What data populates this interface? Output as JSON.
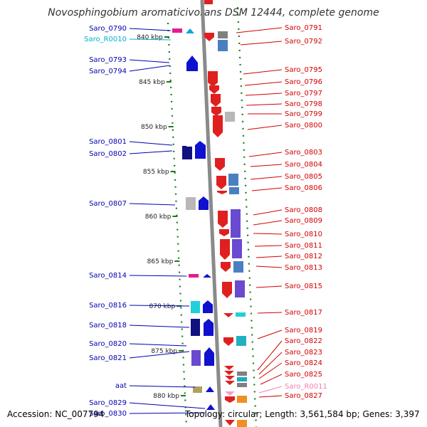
{
  "title": "Novosphingobium aromaticivorans DSM 12444, complete genome",
  "footer": {
    "accession": "Accession: NC_007794",
    "topology": "Topology: circular; Length: 3,561,584 bp; Genes: 3,397"
  },
  "colors": {
    "left_label": "#0000b4",
    "right_label": "#d40000",
    "rna_left": "#00b0d0",
    "rna_right": "#f080b0",
    "axis": "#888888",
    "ruler": "#1a7a1a"
  },
  "ruler_ticks": [
    {
      "label": "840 kbp",
      "kbp": 840
    },
    {
      "label": "845 kbp",
      "kbp": 845
    },
    {
      "label": "850 kbp",
      "kbp": 850
    },
    {
      "label": "855 kbp",
      "kbp": 855
    },
    {
      "label": "860 kbp",
      "kbp": 860
    },
    {
      "label": "865 kbp",
      "kbp": 865
    },
    {
      "label": "870 kbp",
      "kbp": 870
    },
    {
      "label": "875 kbp",
      "kbp": 875
    },
    {
      "label": "880 kbp",
      "kbp": 880
    }
  ],
  "left_labels": [
    {
      "text": "Saro_0790",
      "kind": "gene"
    },
    {
      "text": "Saro_R0010",
      "kind": "rna"
    },
    {
      "text": "Saro_0793",
      "kind": "gene"
    },
    {
      "text": "Saro_0794",
      "kind": "gene"
    },
    {
      "text": "Saro_0801",
      "kind": "gene"
    },
    {
      "text": "Saro_0802",
      "kind": "gene"
    },
    {
      "text": "Saro_0807",
      "kind": "gene"
    },
    {
      "text": "Saro_0814",
      "kind": "gene"
    },
    {
      "text": "Saro_0816",
      "kind": "gene"
    },
    {
      "text": "Saro_0818",
      "kind": "gene"
    },
    {
      "text": "Saro_0820",
      "kind": "gene"
    },
    {
      "text": "Saro_0821",
      "kind": "gene"
    },
    {
      "text": "aat",
      "kind": "gene"
    },
    {
      "text": "Saro_0829",
      "kind": "gene"
    },
    {
      "text": "Saro_0830",
      "kind": "gene"
    }
  ],
  "right_labels": [
    {
      "text": "Saro_0791",
      "kind": "gene"
    },
    {
      "text": "Saro_0792",
      "kind": "gene"
    },
    {
      "text": "Saro_0795",
      "kind": "gene"
    },
    {
      "text": "Saro_0796",
      "kind": "gene"
    },
    {
      "text": "Saro_0797",
      "kind": "gene"
    },
    {
      "text": "Saro_0798",
      "kind": "gene"
    },
    {
      "text": "Saro_0799",
      "kind": "gene"
    },
    {
      "text": "Saro_0800",
      "kind": "gene"
    },
    {
      "text": "Saro_0803",
      "kind": "gene"
    },
    {
      "text": "Saro_0804",
      "kind": "gene"
    },
    {
      "text": "Saro_0805",
      "kind": "gene"
    },
    {
      "text": "Saro_0806",
      "kind": "gene"
    },
    {
      "text": "Saro_0808",
      "kind": "gene"
    },
    {
      "text": "Saro_0809",
      "kind": "gene"
    },
    {
      "text": "Saro_0810",
      "kind": "gene"
    },
    {
      "text": "Saro_0811",
      "kind": "gene"
    },
    {
      "text": "Saro_0812",
      "kind": "gene"
    },
    {
      "text": "Saro_0813",
      "kind": "gene"
    },
    {
      "text": "Saro_0815",
      "kind": "gene"
    },
    {
      "text": "Saro_0817",
      "kind": "gene"
    },
    {
      "text": "Saro_0819",
      "kind": "gene"
    },
    {
      "text": "Saro_0822",
      "kind": "gene"
    },
    {
      "text": "Saro_0823",
      "kind": "gene"
    },
    {
      "text": "Saro_0824",
      "kind": "gene"
    },
    {
      "text": "Saro_0825",
      "kind": "gene"
    },
    {
      "text": "Saro_R0011",
      "kind": "rna"
    },
    {
      "text": "Saro_0827",
      "kind": "gene"
    }
  ]
}
